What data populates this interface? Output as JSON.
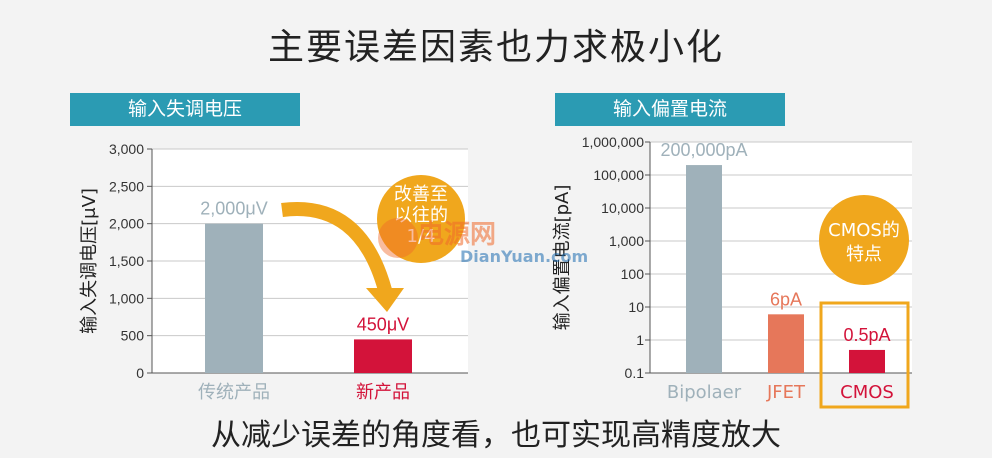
{
  "title": "主要误差因素也力求极小化",
  "footer": "从减少误差的角度看，也可实现高精度放大",
  "watermark": {
    "text": "电源网",
    "sub": "DianYuan.com"
  },
  "chart_data": [
    {
      "type": "bar",
      "header": "输入失调电压",
      "ylabel": "输入失调电压[μV]",
      "categories": [
        "传统产品",
        "新产品"
      ],
      "values": [
        2000,
        450
      ],
      "data_labels": [
        "2,000μV",
        "450μV"
      ],
      "ylim": [
        0,
        3000
      ],
      "yticks": [
        0,
        500,
        1000,
        1500,
        2000,
        2500,
        3000
      ],
      "ytick_labels": [
        "0",
        "500",
        "1,000",
        "1,500",
        "2,000",
        "2,500",
        "3,000"
      ],
      "grid": true,
      "colors": [
        "#9fb1ba",
        "#d3133a"
      ],
      "category_colors": [
        "#9fb1ba",
        "#d3133a"
      ],
      "annotation": {
        "lines": [
          "改善至",
          "以往的",
          "1/4"
        ],
        "color": "#f0a71d"
      }
    },
    {
      "type": "bar",
      "header": "输入偏置电流",
      "ylabel": "输入偏置电流[pA]",
      "categories": [
        "Bipolaer",
        "JFET",
        "CMOS"
      ],
      "values": [
        200000,
        6,
        0.5
      ],
      "data_labels": [
        "200,000pA",
        "6pA",
        "0.5pA"
      ],
      "yscale": "log",
      "ylim": [
        0.1,
        1000000
      ],
      "yticks": [
        0.1,
        1,
        10,
        100,
        1000,
        10000,
        100000,
        1000000
      ],
      "ytick_labels": [
        "0.1",
        "1",
        "10",
        "100",
        "1,000",
        "10,000",
        "100,000",
        "1,000,000"
      ],
      "grid": true,
      "colors": [
        "#9fb1ba",
        "#e6775a",
        "#d3133a"
      ],
      "category_colors": [
        "#9fb1ba",
        "#e6775a",
        "#d3133a"
      ],
      "annotation": {
        "lines": [
          "CMOS的",
          "特点"
        ],
        "color": "#f0a71d"
      },
      "highlight": "CMOS"
    }
  ]
}
